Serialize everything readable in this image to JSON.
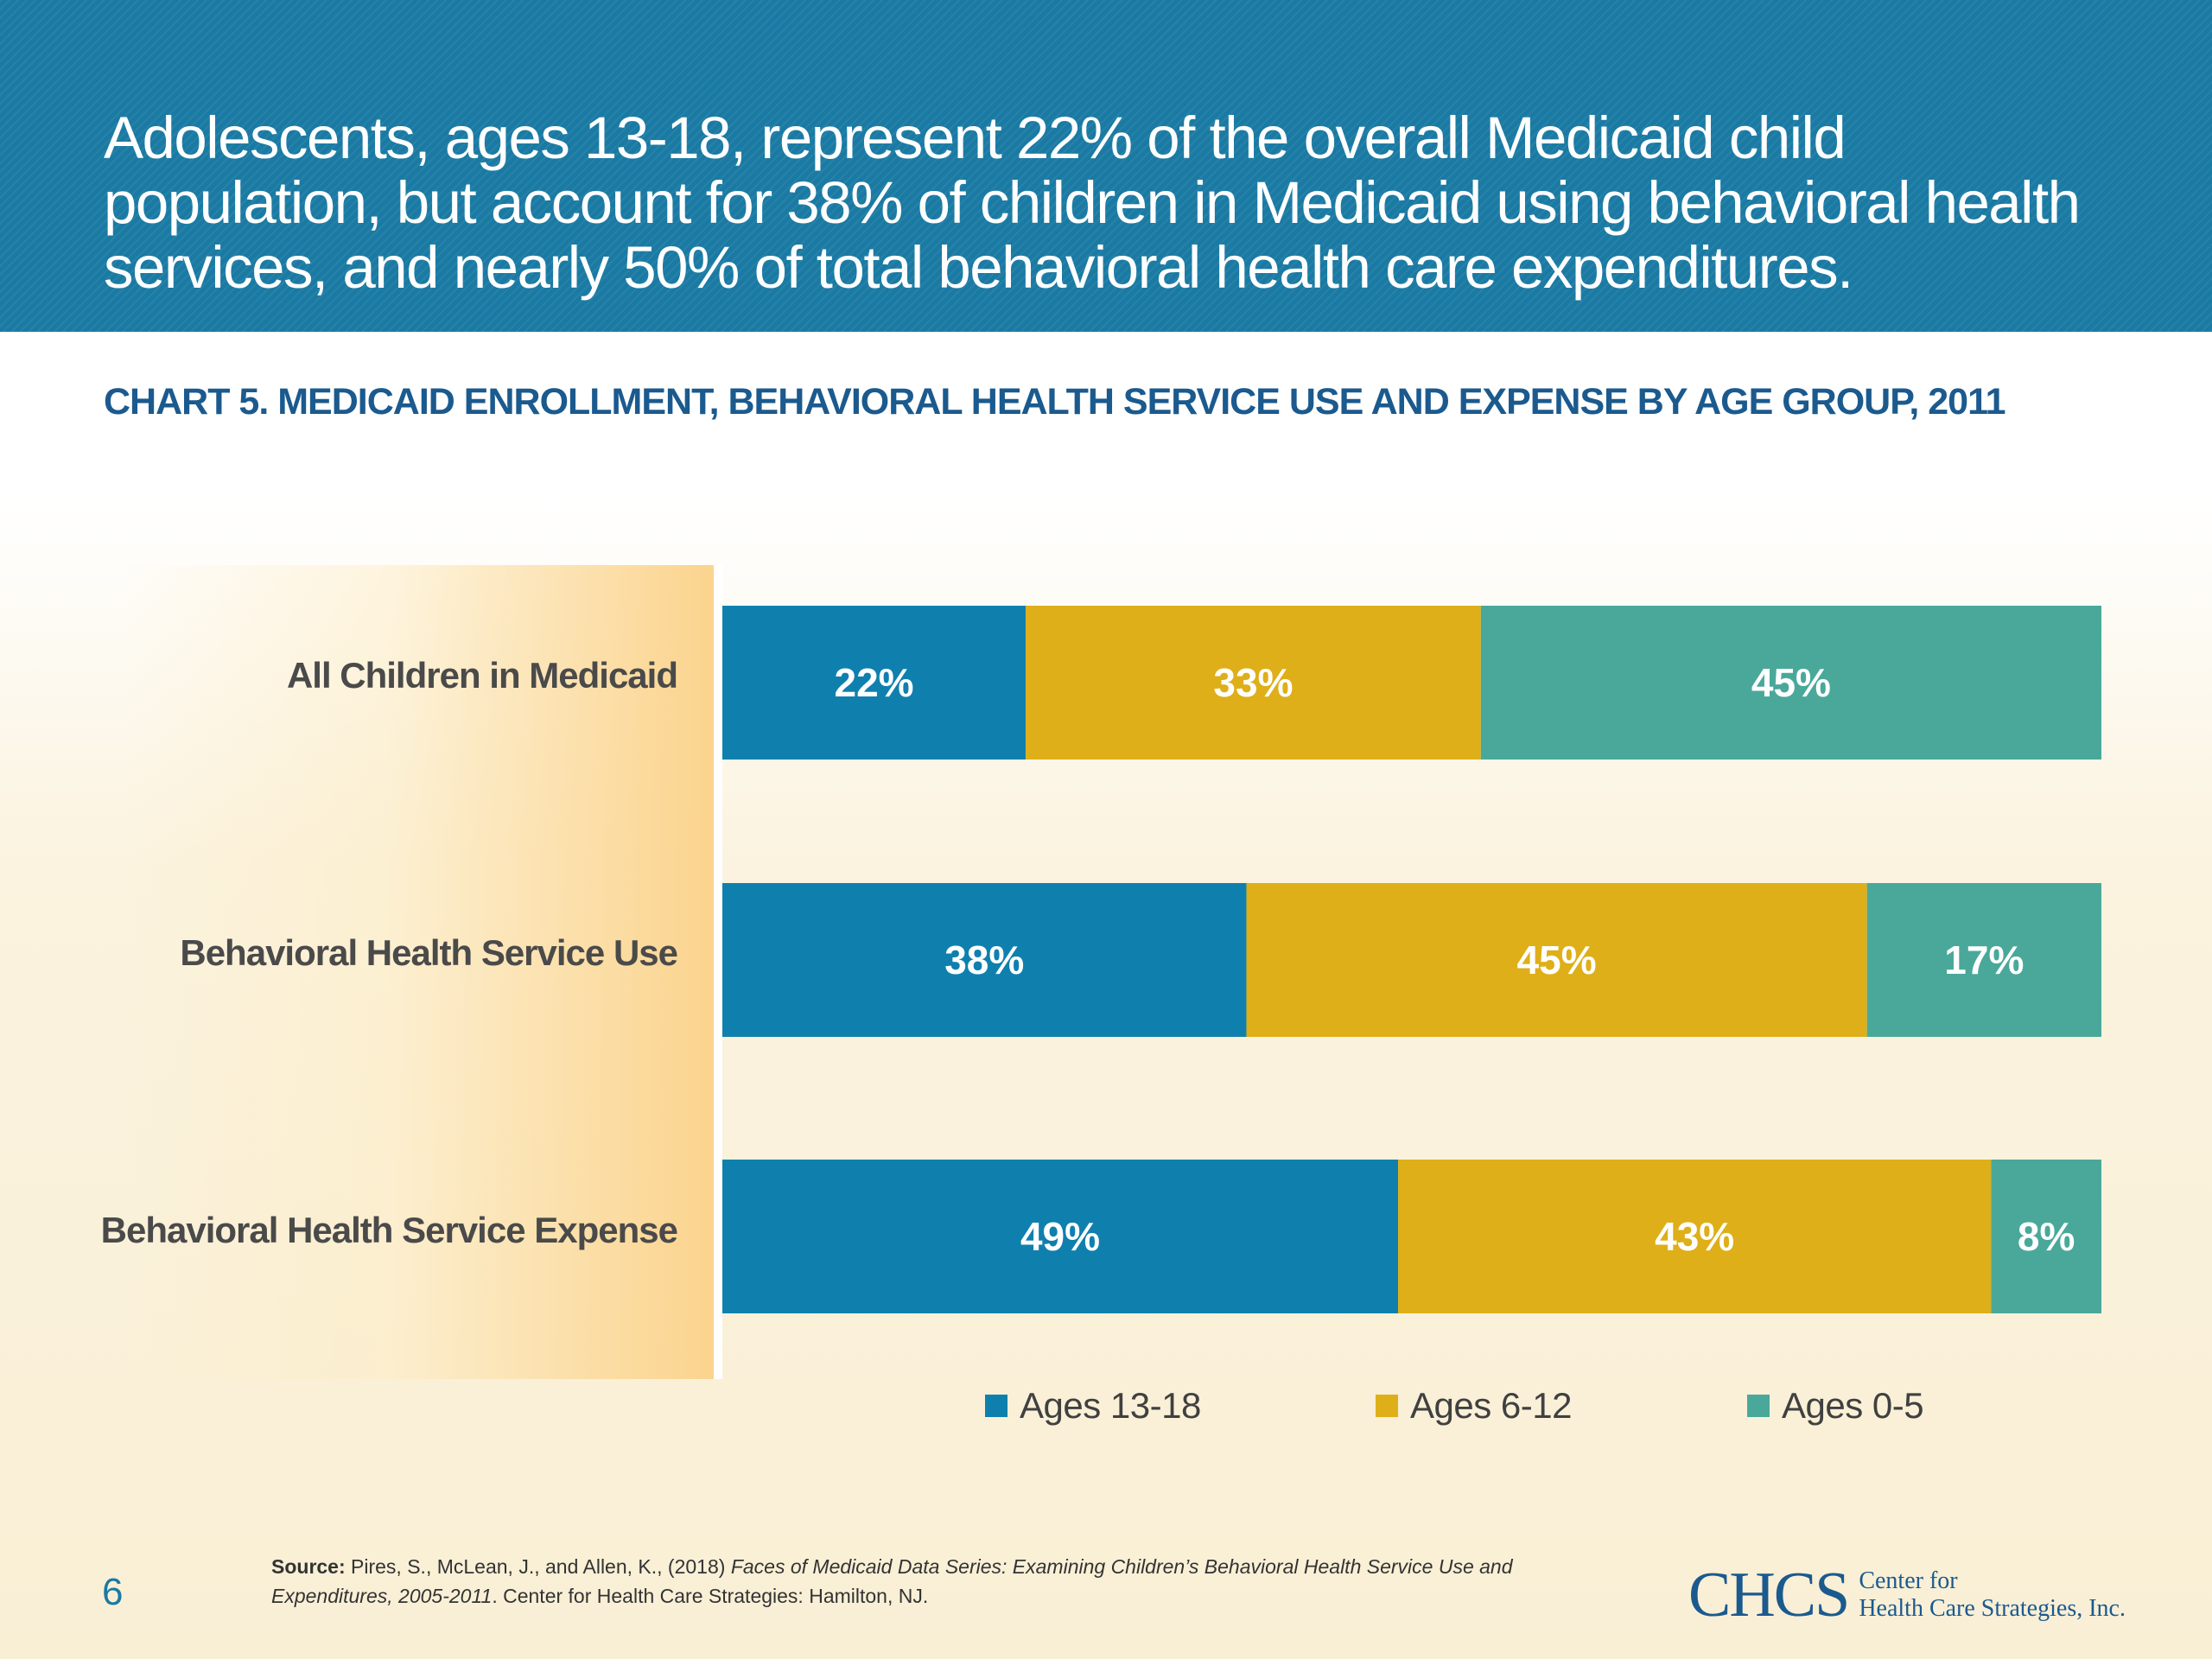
{
  "header": {
    "headline": "Adolescents, ages 13-18, represent 22% of the overall Medicaid child population, but account for 38% of children in Medicaid using behavioral health services, and nearly 50% of total behavioral health care expenditures."
  },
  "chart_data": {
    "type": "bar",
    "orientation": "horizontal",
    "stacked": true,
    "title": "CHART 5. MEDICAID ENROLLMENT, BEHAVIORAL HEALTH SERVICE USE AND EXPENSE BY AGE GROUP, 2011",
    "categories": [
      "All Children in Medicaid",
      "Behavioral Health Service Use",
      "Behavioral Health Service Expense"
    ],
    "series": [
      {
        "name": "Ages 13-18",
        "color": "#0f80ae",
        "values": [
          22,
          38,
          49
        ],
        "labels": [
          "22%",
          "38%",
          "49%"
        ]
      },
      {
        "name": "Ages 6-12",
        "color": "#deaf18",
        "values": [
          33,
          45,
          43
        ],
        "labels": [
          "33%",
          "45%",
          "43%"
        ]
      },
      {
        "name": "Ages 0-5",
        "color": "#4aa89a",
        "values": [
          45,
          17,
          8
        ],
        "labels": [
          "45%",
          "17%",
          "8%"
        ]
      }
    ],
    "xlim": [
      0,
      100
    ],
    "grid": false,
    "legend_position": "bottom"
  },
  "footer": {
    "page_number": "6",
    "source_label": "Source:",
    "source_text_1": " Pires, S., McLean, J., and Allen, K., (2018) ",
    "source_italic": "Faces of Medicaid Data Series: Examining Children’s Behavioral Health Service Use and Expenditures, 2005-2011",
    "source_text_2": ". Center for Health Care Strategies: Hamilton, NJ.",
    "logo_mark": "CHCS",
    "logo_line1": "Center for",
    "logo_line2": "Health Care Strategies, Inc."
  }
}
